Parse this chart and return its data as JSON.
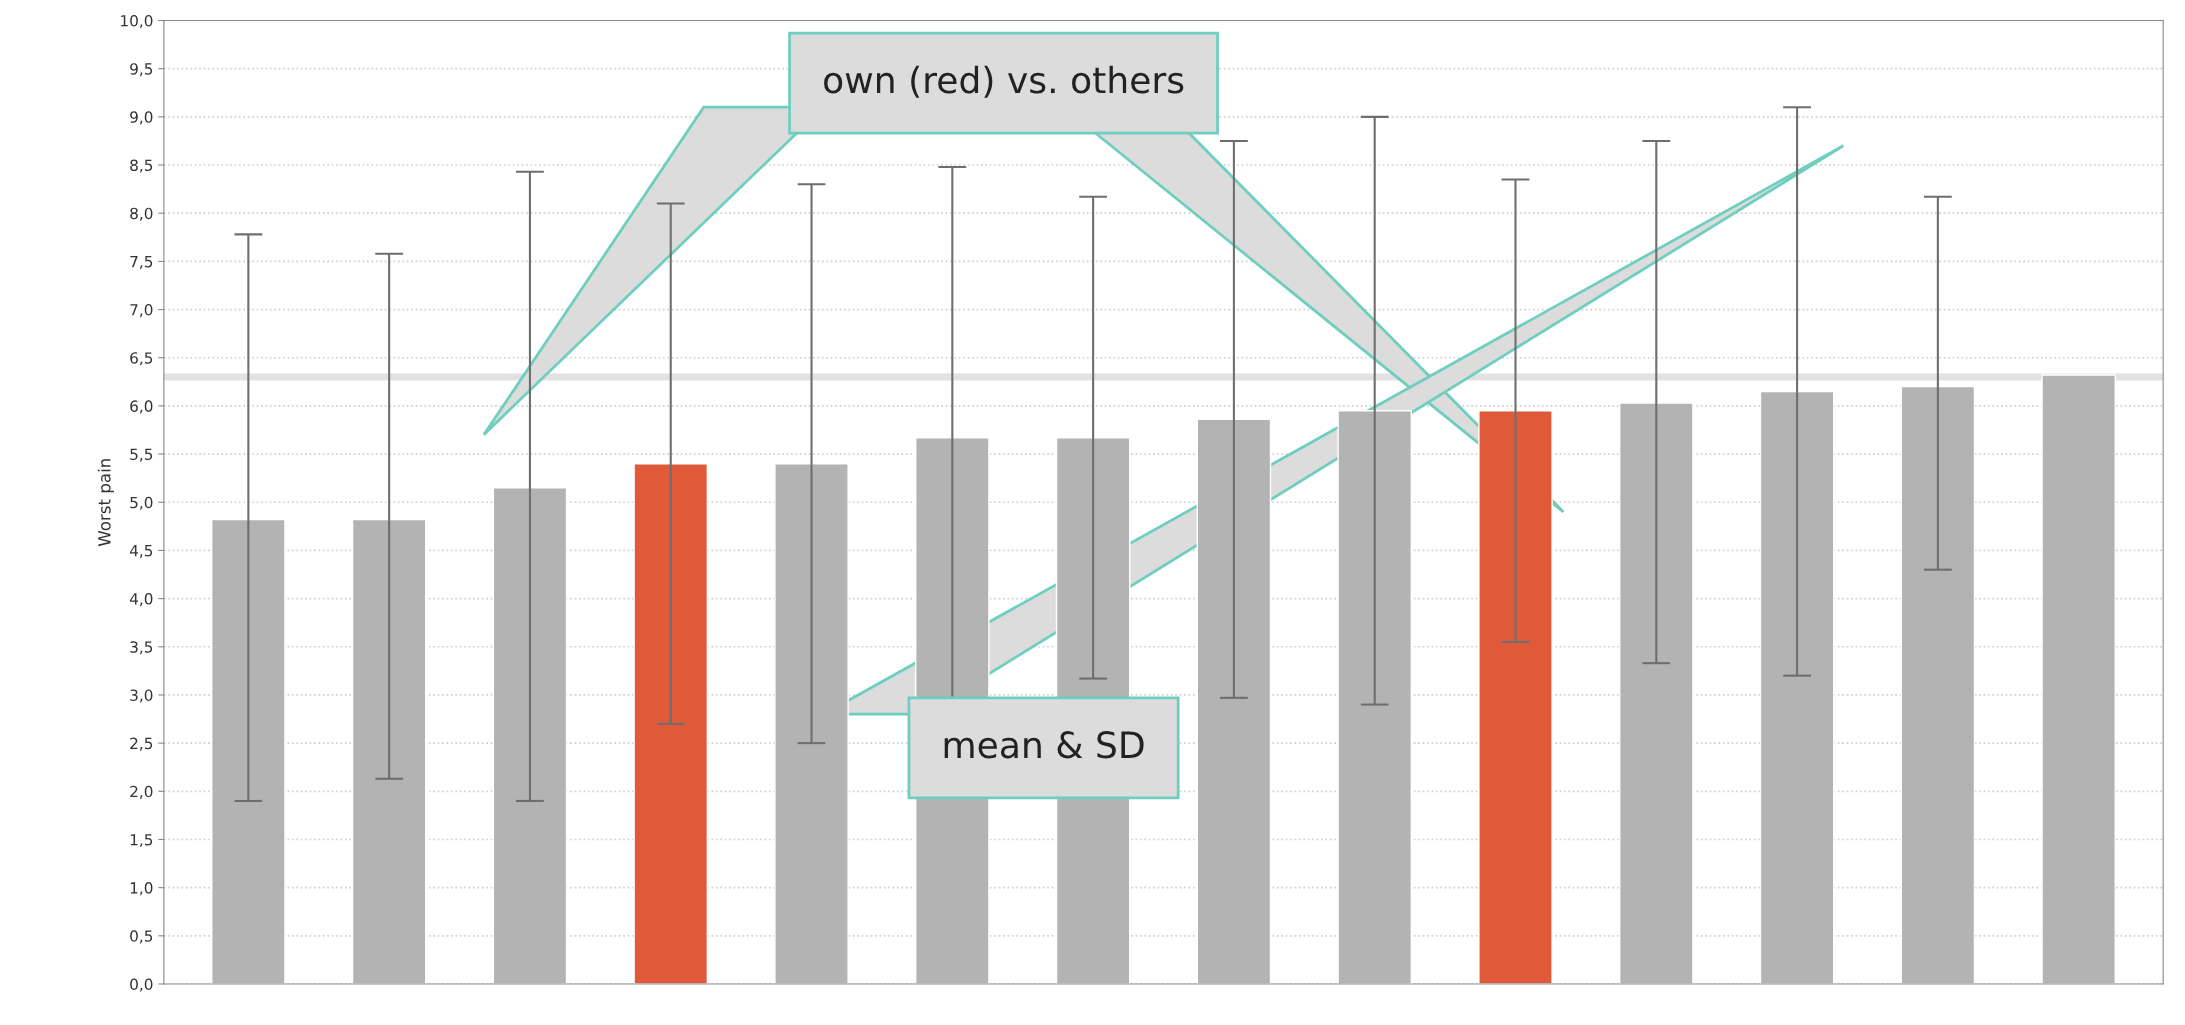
{
  "chart_data": {
    "type": "bar",
    "ylabel": "Worst pain",
    "categories": [
      null,
      null,
      null,
      null,
      null,
      null,
      null,
      null,
      null,
      null,
      null,
      null,
      null,
      null
    ],
    "values": [
      4.82,
      4.82,
      5.15,
      5.4,
      5.4,
      5.67,
      5.67,
      5.86,
      5.95,
      5.95,
      6.03,
      6.15,
      6.2,
      6.32
    ],
    "errors": [
      [
        1.9,
        7.78
      ],
      [
        2.13,
        7.58
      ],
      [
        1.9,
        8.43
      ],
      2.7,
      2.9,
      2.81,
      2.5,
      2.89,
      [
        2.9,
        9.0
      ],
      2.4,
      [
        3.33,
        8.75
      ],
      [
        3.2,
        9.1
      ],
      [
        4.3,
        8.17
      ],
      null
    ],
    "colors": [
      "#b3b3b3",
      "#b3b3b3",
      "#b3b3b3",
      "#e05a3a",
      "#b3b3b3",
      "#b3b3b3",
      "#b3b3b3",
      "#b3b3b3",
      "#b3b3b3",
      "#e05a3a",
      "#b3b3b3",
      "#b3b3b3",
      "#b3b3b3",
      "#b3b3b3"
    ],
    "ylim": [
      0,
      10
    ],
    "yticks": [
      {
        "value": 0,
        "label": "0,0"
      },
      {
        "value": 0.5,
        "label": "0,5"
      },
      {
        "value": 1,
        "label": "1,0"
      },
      {
        "value": 1.5,
        "label": "1,5"
      },
      {
        "value": 2,
        "label": "2,0"
      },
      {
        "value": 2.5,
        "label": "2,5"
      },
      {
        "value": 3,
        "label": "3,0"
      },
      {
        "value": 3.5,
        "label": "3,5"
      },
      {
        "value": 4,
        "label": "4,0"
      },
      {
        "value": 4.5,
        "label": "4,5"
      },
      {
        "value": 5,
        "label": "5,0"
      },
      {
        "value": 5.5,
        "label": "5,5"
      },
      {
        "value": 6,
        "label": "6,0"
      },
      {
        "value": 6.5,
        "label": "6,5"
      },
      {
        "value": 7,
        "label": "7,0"
      },
      {
        "value": 7.5,
        "label": "7,5"
      },
      {
        "value": 8,
        "label": "8,0"
      },
      {
        "value": 8.5,
        "label": "8,5"
      },
      {
        "value": 9,
        "label": "9,0"
      },
      {
        "value": 9.5,
        "label": "9,5"
      },
      {
        "value": 10,
        "label": "10,0"
      }
    ],
    "ref_lines": [
      {
        "axis": "y",
        "value": 6.3,
        "color": "#e2e2e2"
      }
    ],
    "grid": "y",
    "annotations": [
      "own (red) vs. others",
      "mean & SD"
    ]
  }
}
